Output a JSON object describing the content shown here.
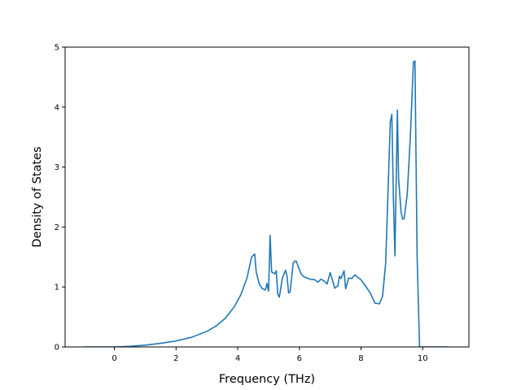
{
  "chart_data": {
    "type": "line",
    "xlabel": "Frequency (THz)",
    "ylabel": "Density of States",
    "xlim": [
      -1.6,
      11.5
    ],
    "ylim": [
      0,
      5
    ],
    "grid": false,
    "xticks": [
      0,
      2,
      4,
      6,
      8,
      10
    ],
    "yticks": [
      0,
      1,
      2,
      3,
      4,
      5
    ],
    "series": [
      {
        "color": "#1f77b4",
        "x": [
          -1.0,
          -0.5,
          0.0,
          0.5,
          1.0,
          1.5,
          2.0,
          2.5,
          3.0,
          3.3,
          3.6,
          3.9,
          4.1,
          4.3,
          4.45,
          4.55,
          4.6,
          4.7,
          4.8,
          4.9,
          4.95,
          5.0,
          5.05,
          5.1,
          5.2,
          5.25,
          5.3,
          5.35,
          5.45,
          5.55,
          5.6,
          5.65,
          5.7,
          5.8,
          5.85,
          5.9,
          6.05,
          6.15,
          6.25,
          6.35,
          6.5,
          6.6,
          6.7,
          6.8,
          6.9,
          7.0,
          7.05,
          7.15,
          7.25,
          7.3,
          7.35,
          7.45,
          7.5,
          7.6,
          7.7,
          7.8,
          7.9,
          8.0,
          8.1,
          8.3,
          8.45,
          8.6,
          8.7,
          8.8,
          8.95,
          9.0,
          9.05,
          9.1,
          9.18,
          9.22,
          9.3,
          9.35,
          9.4,
          9.5,
          9.6,
          9.7,
          9.75,
          9.82,
          9.9,
          9.97,
          10.0,
          10.5,
          10.85
        ],
        "y": [
          0.0,
          0.0,
          0.0,
          0.01,
          0.03,
          0.06,
          0.1,
          0.16,
          0.26,
          0.35,
          0.48,
          0.68,
          0.87,
          1.15,
          1.5,
          1.55,
          1.25,
          1.05,
          0.97,
          0.95,
          1.06,
          0.93,
          1.86,
          1.25,
          1.22,
          1.27,
          0.88,
          0.83,
          1.15,
          1.28,
          1.18,
          0.9,
          0.92,
          1.4,
          1.43,
          1.43,
          1.22,
          1.17,
          1.15,
          1.13,
          1.12,
          1.08,
          1.13,
          1.1,
          1.05,
          1.24,
          1.15,
          0.98,
          1.02,
          1.18,
          1.14,
          1.27,
          0.97,
          1.15,
          1.14,
          1.2,
          1.16,
          1.12,
          1.05,
          0.9,
          0.73,
          0.72,
          0.85,
          1.4,
          3.75,
          3.88,
          2.5,
          1.52,
          3.95,
          2.8,
          2.25,
          2.13,
          2.14,
          2.55,
          3.5,
          4.75,
          4.77,
          1.5,
          0.0,
          0.0,
          0.0,
          0.0,
          0.0
        ]
      }
    ]
  }
}
